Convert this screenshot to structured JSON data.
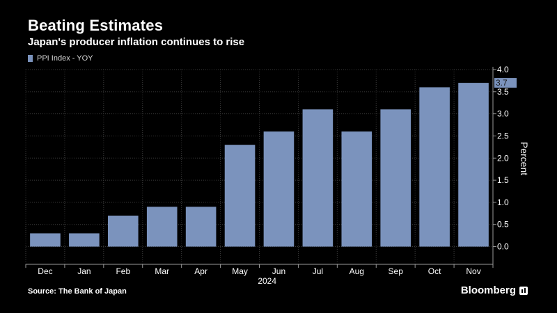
{
  "chart_data": {
    "type": "bar",
    "title": "Beating Estimates",
    "subtitle": "Japan's producer inflation continues to rise",
    "legend": [
      "PPI Index - YOY"
    ],
    "categories": [
      "Dec",
      "Jan",
      "Feb",
      "Mar",
      "Apr",
      "May",
      "Jun",
      "Jul",
      "Aug",
      "Sep",
      "Oct",
      "Nov"
    ],
    "series": [
      {
        "name": "PPI Index - YOY",
        "values": [
          0.3,
          0.3,
          0.7,
          0.9,
          0.9,
          2.3,
          2.6,
          3.1,
          2.6,
          3.1,
          3.6,
          3.7
        ]
      }
    ],
    "year_label": "2024",
    "ylabel": "Percent",
    "ylim": [
      -0.4,
      4.0
    ],
    "yticks": [
      "0.0",
      "0.5",
      "1.0",
      "1.5",
      "2.0",
      "2.5",
      "3.0",
      "3.5",
      "4.0"
    ],
    "last_value_label": "3.7",
    "bar_color": "#7b93bd",
    "axis_side": "right",
    "grid": true
  },
  "footer": {
    "source": "Source: The Bank of Japan",
    "brand": "Bloomberg"
  }
}
